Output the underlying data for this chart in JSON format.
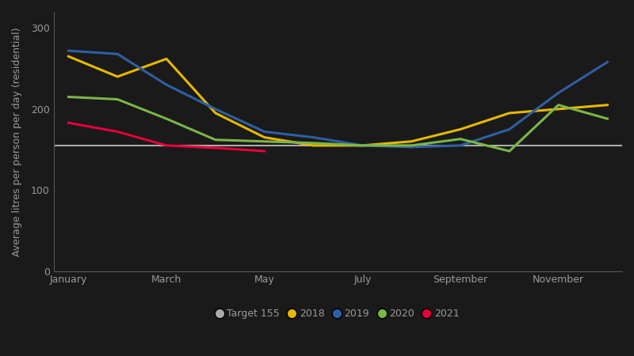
{
  "month_indices": [
    0,
    1,
    2,
    3,
    4,
    5,
    6,
    7,
    8,
    9,
    10,
    11
  ],
  "x_tick_labels": [
    "January",
    "March",
    "May",
    "July",
    "September",
    "November"
  ],
  "x_tick_positions": [
    0,
    2,
    4,
    6,
    8,
    10
  ],
  "target_value": 155,
  "target_label": "Target 155",
  "target_color": "#aaaaaa",
  "series": {
    "2018": {
      "color": "#e6b800",
      "data": [
        265,
        240,
        262,
        195,
        165,
        155,
        155,
        160,
        175,
        195,
        200,
        205
      ]
    },
    "2019": {
      "color": "#2e5fa3",
      "data": [
        272,
        268,
        230,
        200,
        172,
        165,
        155,
        153,
        155,
        175,
        220,
        258
      ]
    },
    "2020": {
      "color": "#7ab648",
      "data": [
        215,
        212,
        188,
        162,
        160,
        158,
        155,
        155,
        163,
        148,
        205,
        188
      ]
    },
    "2021": {
      "color": "#e6003a",
      "data": [
        183,
        172,
        155,
        152,
        148,
        null,
        null,
        null,
        null,
        null,
        null,
        null
      ]
    }
  },
  "series_order": [
    "2018",
    "2019",
    "2020",
    "2021"
  ],
  "ylim": [
    0,
    320
  ],
  "yticks": [
    0,
    100,
    200,
    300
  ],
  "ylabel": "Average litres per person per day (residential)",
  "background_color": "#1a1a1a",
  "axes_color": "#555555",
  "text_color": "#999999",
  "line_width": 2.2,
  "figsize": [
    8.0,
    4.5
  ],
  "dpi": 100
}
